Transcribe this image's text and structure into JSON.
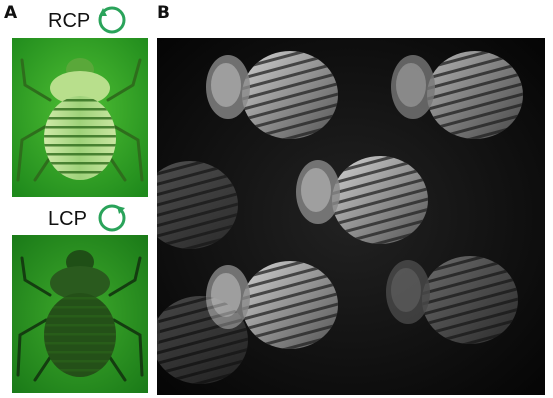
{
  "panels": [
    {
      "label": "A",
      "images": [
        {
          "caption": "RCP"
        },
        {
          "caption": "LCP"
        }
      ]
    },
    {
      "label": "B"
    }
  ]
}
